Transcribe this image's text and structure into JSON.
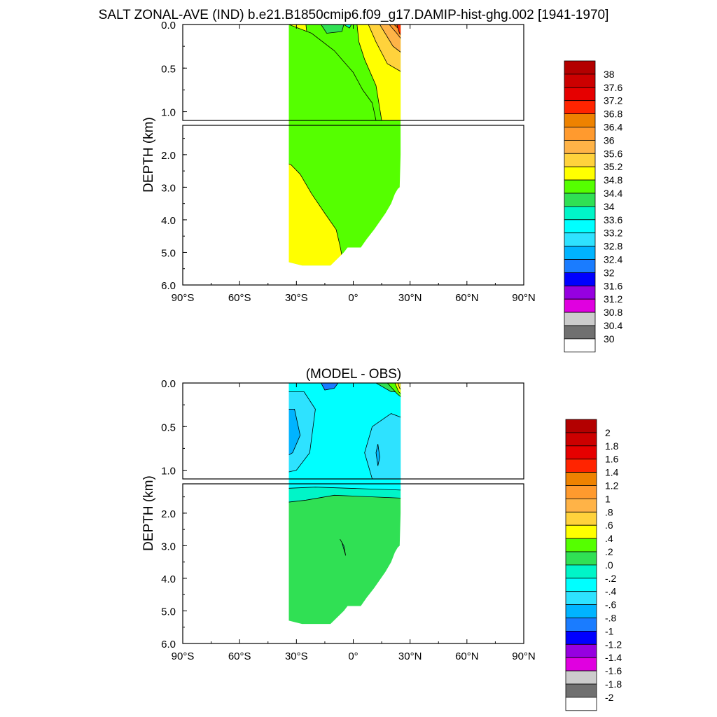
{
  "figure": {
    "main_title": "SALT ZONAL-AVE (IND) b.e21.B1850cmip6.f09_g17.DAMIP-hist-ghg.002 [1941-1970]",
    "ylabel": "DEPTH (km)"
  },
  "chart_data": [
    {
      "type": "heatmap",
      "panel": "absolute",
      "title": "",
      "xlabel": "",
      "ylabel": "DEPTH (km)",
      "x_ticks": [
        "90°S",
        "60°S",
        "30°S",
        "0°",
        "30°N",
        "60°N",
        "90°N"
      ],
      "x_tick_values": [
        -90,
        -60,
        -30,
        0,
        30,
        60,
        90
      ],
      "y_ticks_upper": [
        "0.0",
        "0.5",
        "1.0"
      ],
      "y_ticks_lower": [
        "2.0",
        "3.0",
        "4.0",
        "5.0",
        "6.0"
      ],
      "xlim": [
        -90,
        90
      ],
      "ylim_upper_km": [
        0,
        1.1
      ],
      "ylim_lower_km": [
        1.1,
        6.0
      ],
      "colorbar": {
        "labels": [
          "38",
          "37.6",
          "37.2",
          "36.8",
          "36.4",
          "36",
          "35.6",
          "35.2",
          "34.8",
          "34.4",
          "34",
          "33.6",
          "33.2",
          "32.8",
          "32.4",
          "32",
          "31.6",
          "31.2",
          "30.8",
          "30.4",
          "30"
        ],
        "colors": [
          "#b30000",
          "#cc0000",
          "#e60000",
          "#ff2400",
          "#ee8200",
          "#ff9a2e",
          "#ffb347",
          "#ffd23c",
          "#ffff00",
          "#55ff00",
          "#30e054",
          "#00f5c8",
          "#00ffff",
          "#2ee2ff",
          "#00b4ff",
          "#1a7cff",
          "#0000ff",
          "#9600e0",
          "#e000e0",
          "#cccccc",
          "#707070",
          "#ffffff"
        ]
      },
      "data_extent": {
        "lat_min": -34,
        "lat_max": 25,
        "max_depth_km": 5.4
      },
      "regions_salinity": {
        "surface_north": 36.0,
        "upper_south": 34.9,
        "intermediate": 34.6,
        "deep_north": 34.6,
        "deep_south": 34.9
      }
    },
    {
      "type": "heatmap",
      "panel": "difference",
      "title": "(MODEL - OBS)",
      "xlabel": "",
      "ylabel": "DEPTH (km)",
      "x_ticks": [
        "90°S",
        "60°S",
        "30°S",
        "0°",
        "30°N",
        "60°N",
        "90°N"
      ],
      "x_tick_values": [
        -90,
        -60,
        -30,
        0,
        30,
        60,
        90
      ],
      "y_ticks_upper": [
        "0.0",
        "0.5",
        "1.0"
      ],
      "y_ticks_lower": [
        "2.0",
        "3.0",
        "4.0",
        "5.0",
        "6.0"
      ],
      "xlim": [
        -90,
        90
      ],
      "ylim_upper_km": [
        0,
        1.1
      ],
      "ylim_lower_km": [
        1.1,
        6.0
      ],
      "colorbar": {
        "labels": [
          "2",
          "1.8",
          "1.6",
          "1.4",
          "1.2",
          "1",
          ".8",
          ".6",
          ".4",
          ".2",
          ".0",
          "-.2",
          "-.4",
          "-.6",
          "-.8",
          "-1",
          "-1.2",
          "-1.4",
          "-1.6",
          "-1.8",
          "-2"
        ],
        "colors": [
          "#b30000",
          "#cc0000",
          "#e60000",
          "#ff2400",
          "#ee8200",
          "#ff9a2e",
          "#ffb347",
          "#ffd23c",
          "#ffff00",
          "#55ff00",
          "#30e054",
          "#00f5c8",
          "#00ffff",
          "#2ee2ff",
          "#00b4ff",
          "#1a7cff",
          "#0000ff",
          "#9600e0",
          "#e000e0",
          "#cccccc",
          "#707070",
          "#ffffff"
        ]
      },
      "data_extent": {
        "lat_min": -34,
        "lat_max": 25,
        "max_depth_km": 5.4
      },
      "regions_difference": {
        "upper_south": -0.7,
        "upper_band": -0.3,
        "equatorial_upper": -0.5,
        "surface_north": 0.4,
        "transition": -0.1,
        "deep": 0.1
      }
    }
  ]
}
